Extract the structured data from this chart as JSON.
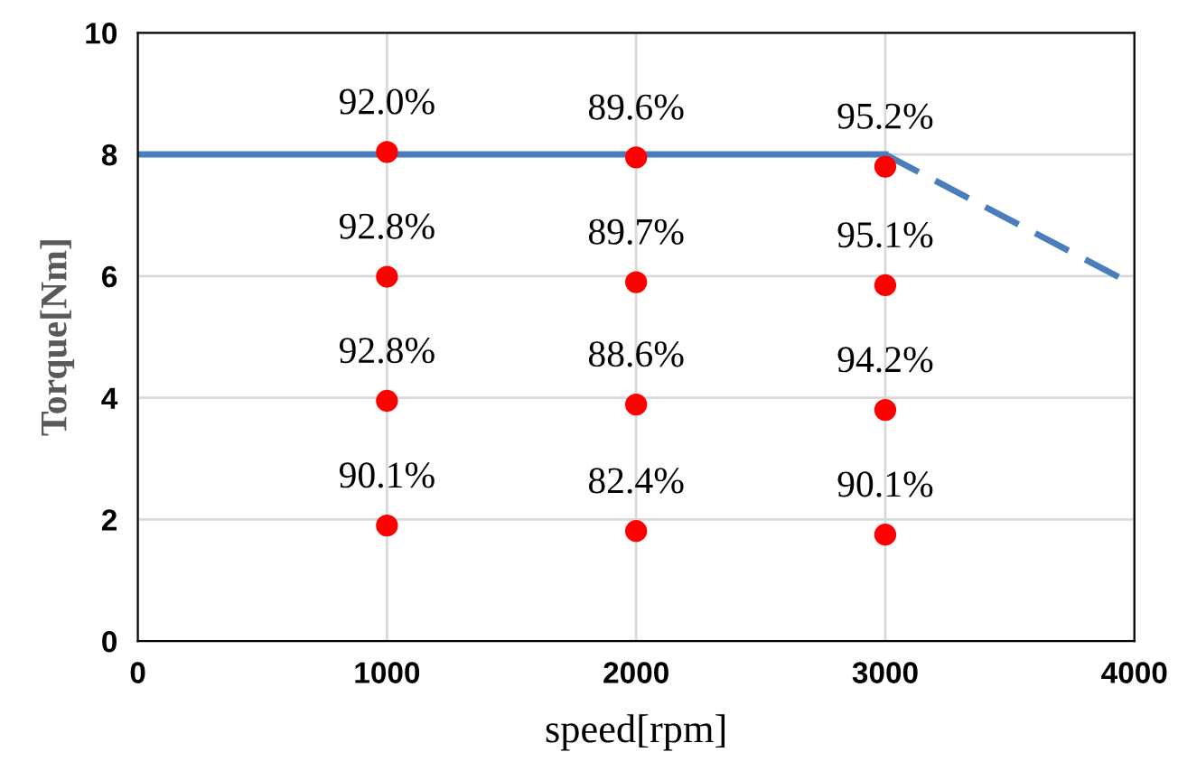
{
  "chart_data": {
    "type": "line",
    "xlabel": "speed[rpm]",
    "ylabel": "Torque[Nm]",
    "xlim": [
      0,
      4000
    ],
    "xticks": [
      0,
      1000,
      2000,
      3000,
      4000
    ],
    "ylim": [
      0,
      10
    ],
    "yticks": [
      0,
      2,
      4,
      6,
      8,
      10
    ],
    "grid": true,
    "legend": false,
    "series": [
      {
        "color": "#4a7ebb",
        "line_style": "solid",
        "marker": "none",
        "x": [
          0,
          3000
        ],
        "values": [
          8,
          8
        ]
      },
      {
        "color": "#4a7ebb",
        "line_style": "dashed",
        "marker": "none",
        "x": [
          3000,
          4000
        ],
        "values": [
          8,
          5.85
        ]
      },
      {
        "type": "scatter",
        "color": "#ff0000",
        "marker": "circle",
        "x": [
          1000,
          2000,
          3000,
          1000,
          2000,
          3000,
          1000,
          2000,
          3000,
          1000,
          2000,
          3000
        ],
        "values": [
          8.04,
          7.95,
          7.8,
          5.99,
          5.9,
          5.85,
          3.95,
          3.89,
          3.8,
          1.9,
          1.81,
          1.75
        ]
      }
    ],
    "annotations": [
      {
        "text": "92.0%",
        "x": 1000,
        "y": 8.04
      },
      {
        "text": "89.6%",
        "x": 2000,
        "y": 7.95
      },
      {
        "text": "95.2%",
        "x": 3000,
        "y": 7.8
      },
      {
        "text": "92.8%",
        "x": 1000,
        "y": 5.99
      },
      {
        "text": "89.7%",
        "x": 2000,
        "y": 5.9
      },
      {
        "text": "95.1%",
        "x": 3000,
        "y": 5.85
      },
      {
        "text": "92.8%",
        "x": 1000,
        "y": 3.95
      },
      {
        "text": "88.6%",
        "x": 2000,
        "y": 3.89
      },
      {
        "text": "94.2%",
        "x": 3000,
        "y": 3.8
      },
      {
        "text": "90.1%",
        "x": 1000,
        "y": 1.9
      },
      {
        "text": "82.4%",
        "x": 2000,
        "y": 1.81
      },
      {
        "text": "90.1%",
        "x": 3000,
        "y": 1.75
      }
    ]
  }
}
